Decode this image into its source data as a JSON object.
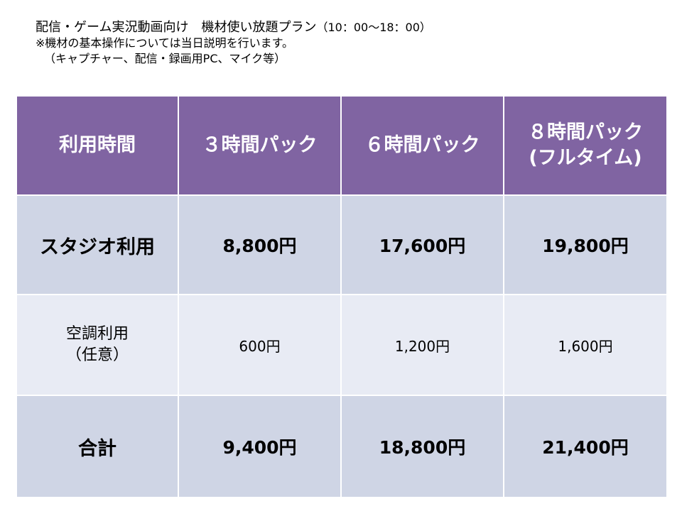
{
  "header": {
    "title_main": "配信・ゲーム実況動画向け　機材使い放題プラン",
    "title_hours": "（10：00〜18：00）",
    "note_line1": "※機材の基本操作については当日説明を行います。",
    "note_line2": "（キャプチャー、配信・録画用PC、マイク等）"
  },
  "table": {
    "columns": {
      "label": "利用時間",
      "pack3": "３時間パック",
      "pack6": "６時間パック",
      "pack8_line1": "８時間パック",
      "pack8_line2": "(フルタイム)"
    },
    "studio": {
      "label": "スタジオ利用",
      "pack3": "8,800円",
      "pack6": "17,600円",
      "pack8": "19,800円"
    },
    "aircon": {
      "label_line1": "空調利用",
      "label_line2": "（任意）",
      "pack3": "600円",
      "pack6": "1,200円",
      "pack8": "1,600円"
    },
    "total": {
      "label": "合計",
      "pack3": "9,400円",
      "pack6": "18,800円",
      "pack8": "21,400円"
    }
  },
  "colors": {
    "header_bg": "#8064a2",
    "row_dark": "#cfd5e5",
    "row_light": "#e8ebf4"
  }
}
